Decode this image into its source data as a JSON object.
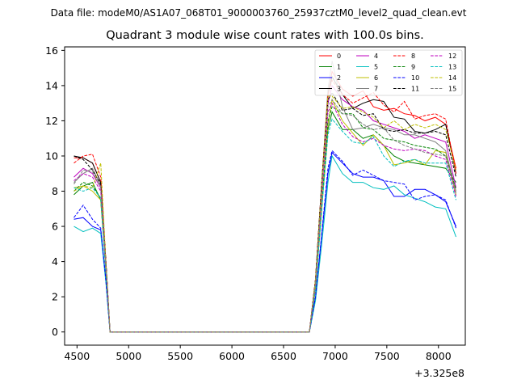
{
  "chart_data": {
    "type": "line",
    "suptitle": "Data file: modeM0/AS1A07_068T01_9000003760_25937cztM0_level2_quad_clean.evt",
    "title": "Quadrant 3 module wise count rates with 100.0s bins.",
    "xlabel": "",
    "ylabel": "",
    "x_offset_label": "+3.325e8",
    "xlim": [
      4380,
      8260
    ],
    "ylim": [
      -0.75,
      16.2
    ],
    "xticks": [
      4500,
      5000,
      5500,
      6000,
      6500,
      7000,
      7500,
      8000
    ],
    "xtick_labels": [
      "4500",
      "5000",
      "5500",
      "6000",
      "6500",
      "7000",
      "7500",
      "8000"
    ],
    "yticks": [
      0,
      2,
      4,
      6,
      8,
      10,
      12,
      14,
      16
    ],
    "ytick_labels": [
      "0",
      "2",
      "4",
      "6",
      "8",
      "10",
      "12",
      "14",
      "16"
    ],
    "grid": false,
    "legend_position": "top-right",
    "x": [
      4470,
      4560,
      4650,
      4730,
      4780,
      4820,
      4870,
      4970,
      5070,
      5170,
      5270,
      5370,
      5470,
      5570,
      5670,
      5770,
      5870,
      5970,
      6070,
      6170,
      6270,
      6370,
      6470,
      6570,
      6670,
      6750,
      6810,
      6870,
      6930,
      6970,
      7070,
      7170,
      7270,
      7370,
      7470,
      7570,
      7670,
      7770,
      7870,
      7970,
      8070,
      8170
    ],
    "series": [
      {
        "name": "0",
        "color": "#ff0000",
        "dash": false,
        "values": [
          9.9,
          9.9,
          9.6,
          8.5,
          4.0,
          0,
          0,
          0,
          0,
          0,
          0,
          0,
          0,
          0,
          0,
          0,
          0,
          0,
          0,
          0,
          0,
          0,
          0,
          0,
          0,
          0,
          3.0,
          8.5,
          13.5,
          14.8,
          13.8,
          13.4,
          13.7,
          12.8,
          12.6,
          12.7,
          12.4,
          12.3,
          12.0,
          12.2,
          11.8,
          9.3
        ]
      },
      {
        "name": "1",
        "color": "#008000",
        "dash": false,
        "values": [
          7.8,
          8.3,
          8.5,
          7.5,
          3.5,
          0,
          0,
          0,
          0,
          0,
          0,
          0,
          0,
          0,
          0,
          0,
          0,
          0,
          0,
          0,
          0,
          0,
          0,
          0,
          0,
          0,
          2.5,
          7.0,
          11.5,
          12.5,
          11.5,
          11.5,
          11.0,
          11.2,
          10.6,
          10.0,
          9.7,
          9.6,
          9.5,
          9.4,
          9.3,
          8.5
        ]
      },
      {
        "name": "2",
        "color": "#0000ff",
        "dash": false,
        "values": [
          6.4,
          6.5,
          6.0,
          5.8,
          3.0,
          0,
          0,
          0,
          0,
          0,
          0,
          0,
          0,
          0,
          0,
          0,
          0,
          0,
          0,
          0,
          0,
          0,
          0,
          0,
          0,
          0,
          2.0,
          5.5,
          9.0,
          10.2,
          9.6,
          9.0,
          8.8,
          8.8,
          8.6,
          7.7,
          7.7,
          8.1,
          8.1,
          7.8,
          7.4,
          6.0
        ]
      },
      {
        "name": "3",
        "color": "#000000",
        "dash": false,
        "values": [
          10.0,
          9.9,
          9.6,
          8.5,
          4.0,
          0,
          0,
          0,
          0,
          0,
          0,
          0,
          0,
          0,
          0,
          0,
          0,
          0,
          0,
          0,
          0,
          0,
          0,
          0,
          0,
          0,
          3.0,
          8.5,
          13.5,
          14.5,
          13.5,
          12.7,
          13.0,
          13.2,
          13.1,
          12.2,
          12.1,
          11.4,
          11.3,
          11.5,
          11.8,
          9.0
        ]
      },
      {
        "name": "4",
        "color": "#bf00bf",
        "dash": false,
        "values": [
          8.8,
          9.3,
          9.0,
          8.2,
          3.8,
          0,
          0,
          0,
          0,
          0,
          0,
          0,
          0,
          0,
          0,
          0,
          0,
          0,
          0,
          0,
          0,
          0,
          0,
          0,
          0,
          0,
          2.8,
          8.0,
          13.0,
          14.0,
          13.2,
          12.8,
          12.6,
          12.0,
          11.8,
          11.6,
          11.4,
          11.0,
          11.2,
          11.0,
          10.8,
          8.2
        ]
      },
      {
        "name": "5",
        "color": "#00bfbf",
        "dash": false,
        "values": [
          6.0,
          5.7,
          5.9,
          5.6,
          2.8,
          0,
          0,
          0,
          0,
          0,
          0,
          0,
          0,
          0,
          0,
          0,
          0,
          0,
          0,
          0,
          0,
          0,
          0,
          0,
          0,
          0,
          1.8,
          5.0,
          8.5,
          10.0,
          9.0,
          8.5,
          8.5,
          8.2,
          8.1,
          8.3,
          7.8,
          7.6,
          7.4,
          7.1,
          7.0,
          5.4
        ]
      },
      {
        "name": "6",
        "color": "#bfbf00",
        "dash": false,
        "values": [
          8.2,
          8.3,
          8.0,
          7.5,
          3.5,
          0,
          0,
          0,
          0,
          0,
          0,
          0,
          0,
          0,
          0,
          0,
          0,
          0,
          0,
          0,
          0,
          0,
          0,
          0,
          0,
          0,
          2.5,
          7.0,
          11.8,
          13.2,
          12.0,
          11.3,
          10.6,
          11.2,
          10.6,
          9.5,
          9.6,
          9.8,
          9.5,
          10.3,
          10.2,
          7.8
        ]
      },
      {
        "name": "7",
        "color": "#808080",
        "dash": false,
        "values": [
          8.5,
          9.0,
          9.3,
          8.3,
          3.8,
          0,
          0,
          0,
          0,
          0,
          0,
          0,
          0,
          0,
          0,
          0,
          0,
          0,
          0,
          0,
          0,
          0,
          0,
          0,
          0,
          0,
          3.0,
          8.5,
          13.8,
          15.4,
          12.8,
          11.5,
          11.6,
          11.8,
          11.6,
          11.5,
          11.2,
          11.2,
          11.0,
          10.8,
          10.3,
          8.0
        ]
      },
      {
        "name": "8",
        "color": "#ff0000",
        "dash": true,
        "values": [
          9.6,
          10.0,
          10.1,
          8.8,
          4.0,
          0,
          0,
          0,
          0,
          0,
          0,
          0,
          0,
          0,
          0,
          0,
          0,
          0,
          0,
          0,
          0,
          0,
          0,
          0,
          0,
          0,
          3.0,
          8.5,
          13.5,
          14.3,
          13.5,
          13.0,
          13.3,
          13.6,
          12.9,
          12.5,
          13.1,
          12.1,
          12.3,
          12.4,
          12.1,
          9.0
        ]
      },
      {
        "name": "9",
        "color": "#008000",
        "dash": true,
        "values": [
          8.0,
          8.5,
          8.3,
          7.6,
          3.5,
          0,
          0,
          0,
          0,
          0,
          0,
          0,
          0,
          0,
          0,
          0,
          0,
          0,
          0,
          0,
          0,
          0,
          0,
          0,
          0,
          0,
          2.5,
          7.2,
          12.0,
          12.8,
          12.4,
          12.4,
          11.6,
          11.5,
          11.0,
          10.9,
          10.8,
          10.6,
          10.5,
          10.4,
          10.0,
          8.1
        ]
      },
      {
        "name": "10",
        "color": "#0000ff",
        "dash": true,
        "values": [
          6.5,
          7.2,
          6.4,
          5.9,
          2.9,
          0,
          0,
          0,
          0,
          0,
          0,
          0,
          0,
          0,
          0,
          0,
          0,
          0,
          0,
          0,
          0,
          0,
          0,
          0,
          0,
          0,
          2.0,
          5.6,
          9.3,
          10.3,
          9.7,
          8.9,
          9.2,
          8.9,
          8.6,
          8.5,
          8.4,
          7.5,
          7.7,
          7.8,
          7.5,
          5.9
        ]
      },
      {
        "name": "11",
        "color": "#000000",
        "dash": true,
        "values": [
          10.0,
          9.8,
          9.2,
          8.4,
          4.0,
          0,
          0,
          0,
          0,
          0,
          0,
          0,
          0,
          0,
          0,
          0,
          0,
          0,
          0,
          0,
          0,
          0,
          0,
          0,
          0,
          0,
          3.0,
          8.5,
          13.2,
          13.6,
          12.6,
          12.7,
          12.3,
          12.4,
          11.5,
          11.4,
          11.5,
          11.3,
          11.3,
          11.4,
          11.2,
          8.8
        ]
      },
      {
        "name": "12",
        "color": "#bf00bf",
        "dash": true,
        "values": [
          8.6,
          9.0,
          8.8,
          8.0,
          3.8,
          0,
          0,
          0,
          0,
          0,
          0,
          0,
          0,
          0,
          0,
          0,
          0,
          0,
          0,
          0,
          0,
          0,
          0,
          0,
          0,
          0,
          2.8,
          7.8,
          12.5,
          13.0,
          11.8,
          11.1,
          10.8,
          11.0,
          10.6,
          10.4,
          10.3,
          10.4,
          10.3,
          10.0,
          9.8,
          7.7
        ]
      },
      {
        "name": "13",
        "color": "#00bfbf",
        "dash": true,
        "values": [
          8.2,
          8.0,
          8.2,
          7.6,
          3.5,
          0,
          0,
          0,
          0,
          0,
          0,
          0,
          0,
          0,
          0,
          0,
          0,
          0,
          0,
          0,
          0,
          0,
          0,
          0,
          0,
          0,
          2.5,
          7.0,
          11.2,
          12.1,
          11.4,
          10.8,
          10.7,
          11.1,
          10.0,
          9.4,
          9.7,
          9.8,
          9.6,
          9.6,
          9.6,
          7.5
        ]
      },
      {
        "name": "14",
        "color": "#bfbf00",
        "dash": true,
        "values": [
          8.0,
          8.3,
          8.2,
          9.6,
          4.0,
          0,
          0,
          0,
          0,
          0,
          0,
          0,
          0,
          0,
          0,
          0,
          0,
          0,
          0,
          0,
          0,
          0,
          0,
          0,
          0,
          0,
          3.0,
          8.4,
          13.4,
          13.4,
          12.7,
          12.8,
          12.5,
          12.2,
          11.6,
          12.0,
          11.5,
          11.8,
          11.6,
          11.8,
          11.5,
          9.2
        ]
      },
      {
        "name": "15",
        "color": "#808080",
        "dash": true,
        "values": [
          8.4,
          9.2,
          9.1,
          8.2,
          3.8,
          0,
          0,
          0,
          0,
          0,
          0,
          0,
          0,
          0,
          0,
          0,
          0,
          0,
          0,
          0,
          0,
          0,
          0,
          0,
          0,
          0,
          2.8,
          8.0,
          12.8,
          13.2,
          12.4,
          12.3,
          11.8,
          11.5,
          11.6,
          10.9,
          10.6,
          10.4,
          10.2,
          10.1,
          10.0,
          7.9
        ]
      }
    ]
  }
}
